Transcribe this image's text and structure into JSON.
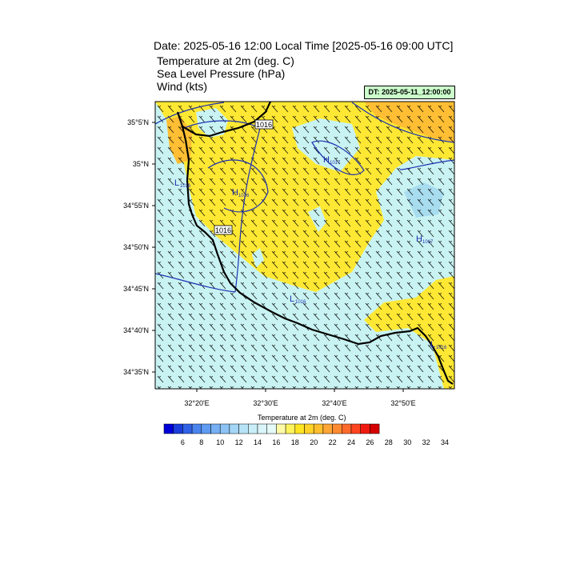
{
  "header": {
    "title": "Date: 2025-05-16  12:00 Local Time [2025-05-16  09:00 UTC]",
    "line1": "Temperature at 2m   (deg. C)",
    "line2": "Sea Level Pressure   (hPa)",
    "line3": "Wind   (kts)",
    "dt_badge": "DT: 2025-05-11_12:00:00"
  },
  "axes": {
    "lat_labels": [
      "35°5'N",
      "35°N",
      "34°55'N",
      "34°50'N",
      "34°45'N",
      "34°40'N",
      "34°35'N"
    ],
    "lon_labels": [
      "32°20'E",
      "32°30'E",
      "32°40'E",
      "32°50'E"
    ]
  },
  "isobars": {
    "labels": [
      "1016",
      "1016"
    ],
    "highs": [
      {
        "symbol": "H",
        "value": "1017"
      },
      {
        "symbol": "H",
        "value": "1016"
      },
      {
        "symbol": "H",
        "value": "1017"
      }
    ],
    "lows": [
      {
        "symbol": "L",
        "value": "1016"
      },
      {
        "symbol": "L",
        "value": "1016"
      },
      {
        "symbol": "L",
        "value": "1016"
      }
    ]
  },
  "colorbar": {
    "title": "Temperature at 2m  (deg. C)",
    "labels": [
      "6",
      "8",
      "10",
      "12",
      "14",
      "16",
      "18",
      "20",
      "22",
      "24",
      "26",
      "28",
      "30",
      "32",
      "34"
    ],
    "colors": [
      "#0000d8",
      "#1a3ddb",
      "#3062e8",
      "#4a84ee",
      "#5f9bf2",
      "#76aff3",
      "#8cc3f4",
      "#a3d5f6",
      "#b7e3f7",
      "#c9eef8",
      "#daf5f9",
      "#e6faf8",
      "#fffaa8",
      "#fff35c",
      "#ffe422",
      "#ffd227",
      "#ffbf2c",
      "#ffa635",
      "#ff8b30",
      "#ff6a2b",
      "#ff4420",
      "#f01a10",
      "#d40000"
    ]
  },
  "fields": {
    "land_color": "#ffe833",
    "sea_color": "#c8f3f2",
    "warm_color": "#ffbe33",
    "cool_color": "#a8dcef",
    "coast_color": "#000000",
    "isobar_color": "#1c2fb0"
  }
}
